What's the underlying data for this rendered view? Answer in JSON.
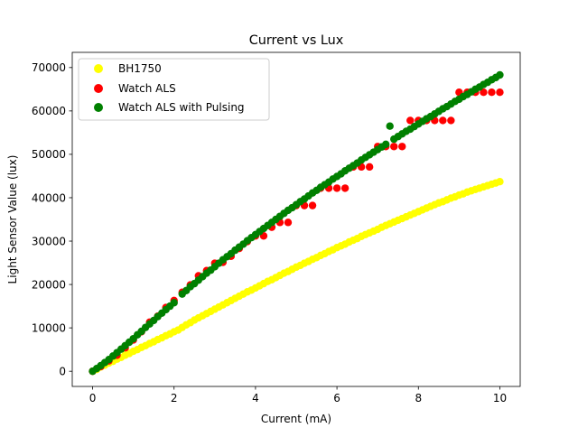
{
  "chart_data": {
    "type": "scatter",
    "title": "Current vs Lux",
    "xlabel": "Current (mA)",
    "ylabel": "Light Sensor Value (lux)",
    "xlim": [
      -0.5,
      10.5
    ],
    "ylim": [
      -3500,
      73500
    ],
    "xticks": [
      0,
      2,
      4,
      6,
      8,
      10
    ],
    "xtick_labels": [
      "0",
      "2",
      "4",
      "6",
      "8",
      "10"
    ],
    "yticks": [
      0,
      10000,
      20000,
      30000,
      40000,
      50000,
      60000,
      70000
    ],
    "ytick_labels": [
      "0",
      "10000",
      "20000",
      "30000",
      "40000",
      "50000",
      "60000",
      "70000"
    ],
    "grid": false,
    "legend_position": "top-left",
    "series": [
      {
        "name": "BH1750",
        "color": "#ffff00",
        "points": [
          [
            0.0,
            0
          ],
          [
            0.1,
            420
          ],
          [
            0.2,
            1000
          ],
          [
            0.3,
            1400
          ],
          [
            0.4,
            1900
          ],
          [
            0.5,
            2300
          ],
          [
            0.6,
            2800
          ],
          [
            0.7,
            3200
          ],
          [
            0.8,
            3700
          ],
          [
            0.9,
            4100
          ],
          [
            1.0,
            4600
          ],
          [
            1.1,
            5000
          ],
          [
            1.2,
            5500
          ],
          [
            1.3,
            5900
          ],
          [
            1.4,
            6400
          ],
          [
            1.5,
            6800
          ],
          [
            1.6,
            7300
          ],
          [
            1.7,
            7700
          ],
          [
            1.8,
            8200
          ],
          [
            1.9,
            8600
          ],
          [
            2.0,
            9100
          ],
          [
            2.1,
            9500
          ],
          [
            2.2,
            10100
          ],
          [
            2.3,
            10700
          ],
          [
            2.4,
            11200
          ],
          [
            2.5,
            11800
          ],
          [
            2.6,
            12300
          ],
          [
            2.7,
            12800
          ],
          [
            2.8,
            13300
          ],
          [
            2.9,
            13800
          ],
          [
            3.0,
            14300
          ],
          [
            3.1,
            14800
          ],
          [
            3.2,
            15300
          ],
          [
            3.3,
            15800
          ],
          [
            3.4,
            16300
          ],
          [
            3.5,
            16800
          ],
          [
            3.6,
            17300
          ],
          [
            3.7,
            17800
          ],
          [
            3.8,
            18300
          ],
          [
            3.9,
            18700
          ],
          [
            4.0,
            19200
          ],
          [
            4.1,
            19700
          ],
          [
            4.2,
            20200
          ],
          [
            4.3,
            20700
          ],
          [
            4.4,
            21100
          ],
          [
            4.5,
            21600
          ],
          [
            4.6,
            22100
          ],
          [
            4.7,
            22600
          ],
          [
            4.8,
            23000
          ],
          [
            4.9,
            23500
          ],
          [
            5.0,
            24000
          ],
          [
            5.1,
            24400
          ],
          [
            5.2,
            24900
          ],
          [
            5.3,
            25300
          ],
          [
            5.4,
            25800
          ],
          [
            5.5,
            26200
          ],
          [
            5.6,
            26700
          ],
          [
            5.7,
            27100
          ],
          [
            5.8,
            27600
          ],
          [
            5.9,
            28000
          ],
          [
            6.0,
            28500
          ],
          [
            6.1,
            28900
          ],
          [
            6.2,
            29300
          ],
          [
            6.3,
            29800
          ],
          [
            6.4,
            30200
          ],
          [
            6.5,
            30600
          ],
          [
            6.6,
            31100
          ],
          [
            6.7,
            31500
          ],
          [
            6.8,
            31900
          ],
          [
            6.9,
            32300
          ],
          [
            7.0,
            32700
          ],
          [
            7.1,
            33200
          ],
          [
            7.2,
            33600
          ],
          [
            7.3,
            34000
          ],
          [
            7.4,
            34400
          ],
          [
            7.5,
            34800
          ],
          [
            7.6,
            35200
          ],
          [
            7.7,
            35600
          ],
          [
            7.8,
            36000
          ],
          [
            7.9,
            36400
          ],
          [
            8.0,
            36800
          ],
          [
            8.1,
            37200
          ],
          [
            8.2,
            37600
          ],
          [
            8.3,
            38000
          ],
          [
            8.4,
            38400
          ],
          [
            8.5,
            38800
          ],
          [
            8.6,
            39100
          ],
          [
            8.7,
            39500
          ],
          [
            8.8,
            39900
          ],
          [
            8.9,
            40200
          ],
          [
            9.0,
            40600
          ],
          [
            9.1,
            40900
          ],
          [
            9.2,
            41300
          ],
          [
            9.3,
            41600
          ],
          [
            9.4,
            41900
          ],
          [
            9.5,
            42200
          ],
          [
            9.6,
            42500
          ],
          [
            9.7,
            42800
          ],
          [
            9.8,
            43100
          ],
          [
            9.9,
            43400
          ],
          [
            10.0,
            43700
          ]
        ]
      },
      {
        "name": "Watch ALS",
        "color": "#ff0000",
        "points": [
          [
            0.0,
            0
          ],
          [
            0.2,
            1100
          ],
          [
            0.4,
            2400
          ],
          [
            0.6,
            3700
          ],
          [
            0.8,
            5400
          ],
          [
            1.0,
            7200
          ],
          [
            1.2,
            9100
          ],
          [
            1.4,
            11300
          ],
          [
            1.6,
            12700
          ],
          [
            1.8,
            14700
          ],
          [
            2.0,
            16300
          ],
          [
            2.2,
            18200
          ],
          [
            2.4,
            19900
          ],
          [
            2.6,
            22000
          ],
          [
            2.8,
            23200
          ],
          [
            3.0,
            24900
          ],
          [
            3.2,
            25100
          ],
          [
            3.4,
            26500
          ],
          [
            3.6,
            28300
          ],
          [
            3.8,
            29900
          ],
          [
            4.0,
            31200
          ],
          [
            4.2,
            31200
          ],
          [
            4.4,
            33200
          ],
          [
            4.6,
            34300
          ],
          [
            4.8,
            34300
          ],
          [
            5.0,
            38200
          ],
          [
            5.2,
            38200
          ],
          [
            5.4,
            38200
          ],
          [
            5.6,
            42200
          ],
          [
            5.8,
            42200
          ],
          [
            6.0,
            42200
          ],
          [
            6.2,
            42200
          ],
          [
            6.4,
            47100
          ],
          [
            6.6,
            47100
          ],
          [
            6.8,
            47100
          ],
          [
            7.0,
            51800
          ],
          [
            7.2,
            51800
          ],
          [
            7.4,
            51800
          ],
          [
            7.6,
            51800
          ],
          [
            7.8,
            57800
          ],
          [
            8.0,
            57800
          ],
          [
            8.2,
            57800
          ],
          [
            8.4,
            57800
          ],
          [
            8.6,
            57800
          ],
          [
            8.8,
            57800
          ],
          [
            9.0,
            64300
          ],
          [
            9.2,
            64300
          ],
          [
            9.4,
            64300
          ],
          [
            9.6,
            64300
          ],
          [
            9.8,
            64300
          ],
          [
            10.0,
            64300
          ]
        ]
      },
      {
        "name": "Watch ALS with Pulsing",
        "color": "#008000",
        "points": [
          [
            0.0,
            0
          ],
          [
            0.1,
            620
          ],
          [
            0.2,
            1300
          ],
          [
            0.3,
            2000
          ],
          [
            0.4,
            2700
          ],
          [
            0.5,
            3500
          ],
          [
            0.6,
            4300
          ],
          [
            0.7,
            5100
          ],
          [
            0.8,
            5900
          ],
          [
            0.9,
            6700
          ],
          [
            1.0,
            7500
          ],
          [
            1.1,
            8400
          ],
          [
            1.2,
            9200
          ],
          [
            1.3,
            10100
          ],
          [
            1.4,
            10900
          ],
          [
            1.5,
            11700
          ],
          [
            1.6,
            12600
          ],
          [
            1.7,
            13400
          ],
          [
            1.8,
            14200
          ],
          [
            1.9,
            15000
          ],
          [
            2.0,
            15800
          ],
          [
            2.2,
            17800
          ],
          [
            2.3,
            18600
          ],
          [
            2.4,
            19500
          ],
          [
            2.5,
            20200
          ],
          [
            2.6,
            21000
          ],
          [
            2.7,
            21800
          ],
          [
            2.8,
            22600
          ],
          [
            2.9,
            23300
          ],
          [
            3.0,
            24100
          ],
          [
            3.1,
            24900
          ],
          [
            3.2,
            25700
          ],
          [
            3.3,
            26400
          ],
          [
            3.4,
            27100
          ],
          [
            3.5,
            27900
          ],
          [
            3.6,
            28600
          ],
          [
            3.7,
            29300
          ],
          [
            3.8,
            30100
          ],
          [
            3.9,
            30800
          ],
          [
            4.0,
            31500
          ],
          [
            4.1,
            32200
          ],
          [
            4.2,
            32900
          ],
          [
            4.3,
            33600
          ],
          [
            4.4,
            34300
          ],
          [
            4.5,
            35000
          ],
          [
            4.6,
            35700
          ],
          [
            4.7,
            36400
          ],
          [
            4.8,
            37100
          ],
          [
            4.9,
            37700
          ],
          [
            5.0,
            38400
          ],
          [
            5.1,
            39100
          ],
          [
            5.2,
            39700
          ],
          [
            5.3,
            40400
          ],
          [
            5.4,
            41100
          ],
          [
            5.5,
            41700
          ],
          [
            5.6,
            42400
          ],
          [
            5.7,
            43000
          ],
          [
            5.8,
            43600
          ],
          [
            5.9,
            44300
          ],
          [
            6.0,
            44900
          ],
          [
            6.1,
            45500
          ],
          [
            6.2,
            46200
          ],
          [
            6.3,
            46800
          ],
          [
            6.4,
            47400
          ],
          [
            6.5,
            48000
          ],
          [
            6.6,
            48700
          ],
          [
            6.7,
            49300
          ],
          [
            6.8,
            49900
          ],
          [
            6.9,
            50500
          ],
          [
            7.0,
            51100
          ],
          [
            7.1,
            51700
          ],
          [
            7.2,
            52300
          ],
          [
            7.3,
            56500
          ],
          [
            7.4,
            53500
          ],
          [
            7.5,
            54100
          ],
          [
            7.6,
            54700
          ],
          [
            7.7,
            55300
          ],
          [
            7.8,
            55800
          ],
          [
            7.9,
            56400
          ],
          [
            8.0,
            57000
          ],
          [
            8.1,
            57600
          ],
          [
            8.2,
            58200
          ],
          [
            8.3,
            58700
          ],
          [
            8.4,
            59300
          ],
          [
            8.5,
            59900
          ],
          [
            8.6,
            60500
          ],
          [
            8.7,
            61000
          ],
          [
            8.8,
            61600
          ],
          [
            8.9,
            62200
          ],
          [
            9.0,
            62700
          ],
          [
            9.1,
            63300
          ],
          [
            9.2,
            63800
          ],
          [
            9.3,
            64400
          ],
          [
            9.4,
            65000
          ],
          [
            9.5,
            65500
          ],
          [
            9.6,
            66100
          ],
          [
            9.7,
            66600
          ],
          [
            9.8,
            67200
          ],
          [
            9.9,
            67700
          ],
          [
            10.0,
            68300
          ]
        ]
      }
    ]
  }
}
